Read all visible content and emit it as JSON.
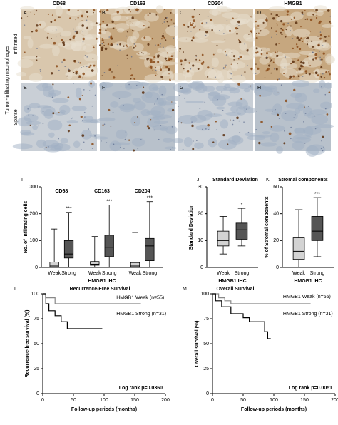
{
  "image_panels": {
    "columns": [
      "CD68",
      "CD163",
      "CD204",
      "HMGB1"
    ],
    "row_group": "Tumor-infiltrating macrophages",
    "rows": [
      "Infiltrated",
      "Sparse"
    ],
    "letters": [
      [
        "A",
        "B",
        "C",
        "D"
      ],
      [
        "E",
        "F",
        "G",
        "H"
      ]
    ]
  },
  "chart_data": [
    {
      "type": "box",
      "panel": "I",
      "x_label": "HMGB1 IHC",
      "y_label": "No. of infiltrating cells",
      "categories": [
        "CD68",
        "CD163",
        "CD204"
      ],
      "series": [
        {
          "name": "Weak",
          "color": "#d3d3d3",
          "min": [
            0,
            0,
            0
          ],
          "q1": [
            3,
            8,
            3
          ],
          "median": [
            8,
            12,
            8
          ],
          "q3": [
            20,
            22,
            18
          ],
          "max": [
            143,
            115,
            130
          ]
        },
        {
          "name": "Strong",
          "color": "#555555",
          "min": [
            0,
            0,
            0
          ],
          "q1": [
            35,
            40,
            25
          ],
          "median": [
            50,
            75,
            80
          ],
          "q3": [
            100,
            120,
            108
          ],
          "max": [
            205,
            232,
            245
          ]
        }
      ],
      "annotations": [
        "***",
        "***",
        "***"
      ],
      "ylim": [
        0,
        300
      ],
      "yticks": [
        0,
        100,
        200,
        300
      ]
    },
    {
      "type": "box",
      "panel": "J",
      "title": "Standard Deviation",
      "x_label": "HMGB1 IHC",
      "y_label": "Standard Deviation",
      "categories": [
        null
      ],
      "series": [
        {
          "name": "Weak",
          "color": "#d3d3d3",
          "min": [
            5
          ],
          "q1": [
            8
          ],
          "median": [
            10
          ],
          "q3": [
            13.5
          ],
          "max": [
            19
          ]
        },
        {
          "name": "Strong",
          "color": "#555555",
          "min": [
            8
          ],
          "q1": [
            10.5
          ],
          "median": [
            14
          ],
          "q3": [
            16.5
          ],
          "max": [
            22
          ]
        }
      ],
      "annotations": [
        "*"
      ],
      "ylim": [
        0,
        30
      ],
      "yticks": [
        0,
        10,
        20,
        30
      ]
    },
    {
      "type": "box",
      "panel": "K",
      "title": "Stromal components",
      "x_label": "HMGB1 IHC",
      "y_label": "% of Stromal components",
      "categories": [
        null
      ],
      "series": [
        {
          "name": "Weak",
          "color": "#d3d3d3",
          "min": [
            0
          ],
          "q1": [
            6
          ],
          "median": [
            12
          ],
          "q3": [
            22
          ],
          "max": [
            43
          ]
        },
        {
          "name": "Strong",
          "color": "#555555",
          "min": [
            8
          ],
          "q1": [
            20
          ],
          "median": [
            27
          ],
          "q3": [
            38
          ],
          "max": [
            52
          ]
        }
      ],
      "annotations": [
        "***"
      ],
      "ylim": [
        0,
        60
      ],
      "yticks": [
        0,
        20,
        40,
        60
      ]
    },
    {
      "type": "step",
      "panel": "L",
      "title": "Recurrence-Free Survival",
      "x_label": "Follow-up periods (months)",
      "y_label": "Recurrence-free survival (%)",
      "series": [
        {
          "name": "HMGB1 Weak (n=55)",
          "color": "#888888",
          "x": [
            0,
            5,
            20,
            160
          ],
          "values": [
            100,
            96,
            90,
            90
          ]
        },
        {
          "name": "HMGB1 Strong (n=31)",
          "color": "#000000",
          "x": [
            0,
            5,
            10,
            20,
            30,
            40,
            97
          ],
          "values": [
            100,
            90,
            83,
            78,
            72,
            65,
            65
          ]
        }
      ],
      "annotation": "Log rank p=0.0360",
      "xlim": [
        0,
        200
      ],
      "xticks": [
        0,
        50,
        100,
        150,
        200
      ],
      "ylim": [
        0,
        100
      ],
      "yticks": [
        0,
        25,
        50,
        75,
        100
      ]
    },
    {
      "type": "step",
      "panel": "M",
      "title": "Overall Survival",
      "x_label": "Follow-up periods (months)",
      "y_label": "Overall survival (%)",
      "series": [
        {
          "name": "HMGB1 Weak (n=55)",
          "color": "#888888",
          "x": [
            0,
            10,
            20,
            30,
            160
          ],
          "values": [
            100,
            96,
            93,
            90,
            90
          ]
        },
        {
          "name": "HMGB1 Strong (n=31)",
          "color": "#000000",
          "x": [
            0,
            5,
            15,
            30,
            50,
            60,
            85,
            90,
            95
          ],
          "values": [
            100,
            93,
            87,
            80,
            76,
            72,
            62,
            55,
            55
          ]
        }
      ],
      "annotation": "Log rank p=0.0051",
      "xlim": [
        0,
        200
      ],
      "xticks": [
        0,
        50,
        100,
        150,
        200
      ],
      "ylim": [
        0,
        100
      ],
      "yticks": [
        0,
        25,
        50,
        75,
        100
      ]
    }
  ]
}
